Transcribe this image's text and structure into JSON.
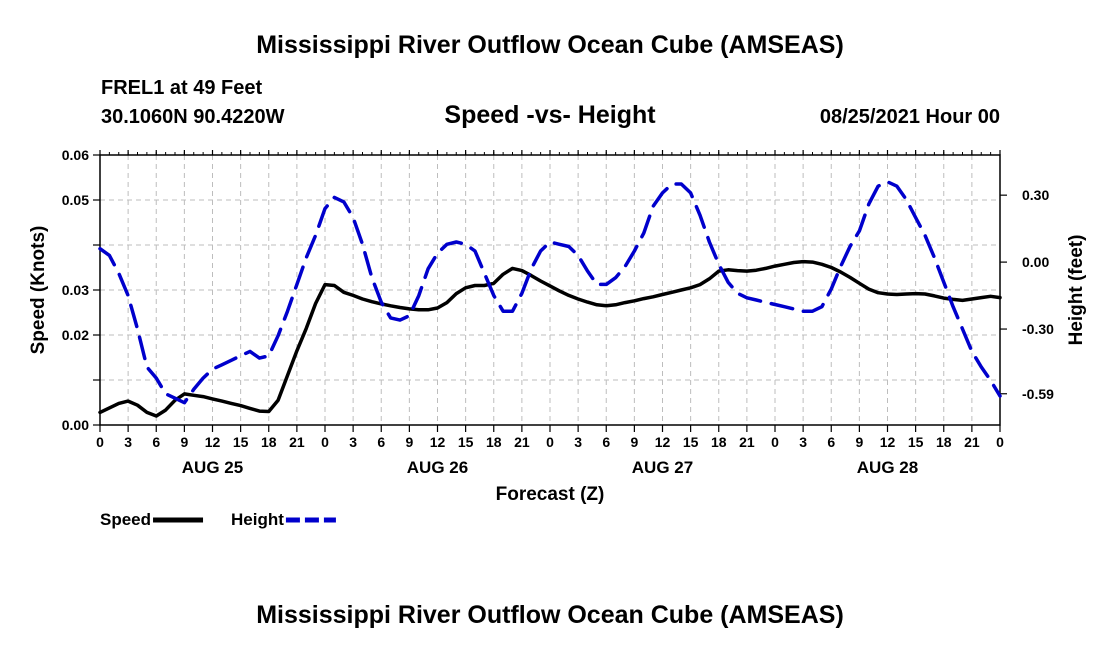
{
  "header": {
    "title": "Mississippi River Outflow Ocean Cube (AMSEAS)",
    "station": "FREL1 at 49 Feet",
    "coordinates": "30.1060N  90.4220W",
    "subtitle": "Speed -vs- Height",
    "datetime": "08/25/2021 Hour 00"
  },
  "footer": {
    "title": "Mississippi River Outflow Ocean Cube (AMSEAS)"
  },
  "chart_data": {
    "type": "line",
    "title": "Speed -vs- Height",
    "xlabel": "Forecast (Z)",
    "ylabel_left": "Speed (Knots)",
    "ylabel_right": "Height (feet)",
    "x_unit": "hours since 08/25/2021 00Z",
    "xlim": [
      0,
      96
    ],
    "x_ticks": [
      0,
      3,
      6,
      9,
      12,
      15,
      18,
      21,
      24,
      27,
      30,
      33,
      36,
      39,
      42,
      45,
      48,
      51,
      54,
      57,
      60,
      63,
      66,
      69,
      72,
      75,
      78,
      81,
      84,
      87,
      90,
      93,
      96
    ],
    "x_tick_labels": [
      "0",
      "3",
      "6",
      "9",
      "12",
      "15",
      "18",
      "21",
      "0",
      "3",
      "6",
      "9",
      "12",
      "15",
      "18",
      "21",
      "0",
      "3",
      "6",
      "9",
      "12",
      "15",
      "18",
      "21",
      "0",
      "3",
      "6",
      "9",
      "12",
      "15",
      "18",
      "21",
      "0"
    ],
    "day_labels": [
      {
        "x": 12,
        "label": "AUG 25"
      },
      {
        "x": 36,
        "label": "AUG 26"
      },
      {
        "x": 60,
        "label": "AUG 27"
      },
      {
        "x": 84,
        "label": "AUG 28"
      }
    ],
    "ylim_left": [
      0,
      0.06
    ],
    "y_ticks_left": [
      0,
      0.01,
      0.02,
      0.03,
      0.04,
      0.05,
      0.06
    ],
    "y_tick_labels_left": [
      "0.00",
      "",
      "0.02",
      "0.03",
      "",
      "0.05",
      "0.06"
    ],
    "ylim_right": [
      -0.73,
      0.48
    ],
    "y_ticks_right": [
      -0.59,
      -0.3,
      0.0,
      0.3
    ],
    "y_tick_labels_right": [
      "-0.59",
      "-0.30",
      "0.00",
      "0.30"
    ],
    "grid": true,
    "legend": [
      {
        "label": "Speed",
        "color": "#000000",
        "dash": "solid"
      },
      {
        "label": "Height",
        "color": "#0000cc",
        "dash": "dashed"
      }
    ],
    "series": [
      {
        "name": "Speed",
        "axis": "left",
        "color": "#000000",
        "points": [
          [
            0,
            0.0028
          ],
          [
            1,
            0.0038
          ],
          [
            2,
            0.0048
          ],
          [
            3,
            0.0053
          ],
          [
            4,
            0.0044
          ],
          [
            5,
            0.0028
          ],
          [
            6,
            0.002
          ],
          [
            7,
            0.0033
          ],
          [
            8,
            0.0055
          ],
          [
            9,
            0.0069
          ],
          [
            10,
            0.0066
          ],
          [
            11,
            0.0063
          ],
          [
            12,
            0.0058
          ],
          [
            13,
            0.0053
          ],
          [
            14,
            0.0048
          ],
          [
            15,
            0.0043
          ],
          [
            16,
            0.0037
          ],
          [
            17,
            0.0031
          ],
          [
            18,
            0.003
          ],
          [
            19,
            0.0055
          ],
          [
            20,
            0.011
          ],
          [
            21,
            0.0165
          ],
          [
            22,
            0.0215
          ],
          [
            23,
            0.027
          ],
          [
            24,
            0.0312
          ],
          [
            25,
            0.031
          ],
          [
            26,
            0.0295
          ],
          [
            27,
            0.0288
          ],
          [
            28,
            0.028
          ],
          [
            29,
            0.0274
          ],
          [
            30,
            0.0269
          ],
          [
            31,
            0.0265
          ],
          [
            32,
            0.0261
          ],
          [
            33,
            0.0258
          ],
          [
            34,
            0.0256
          ],
          [
            35,
            0.0256
          ],
          [
            36,
            0.026
          ],
          [
            37,
            0.0272
          ],
          [
            38,
            0.0292
          ],
          [
            39,
            0.0305
          ],
          [
            40,
            0.031
          ],
          [
            41,
            0.031
          ],
          [
            42,
            0.0315
          ],
          [
            43,
            0.0335
          ],
          [
            44,
            0.0348
          ],
          [
            45,
            0.0343
          ],
          [
            46,
            0.0332
          ],
          [
            47,
            0.032
          ],
          [
            48,
            0.0309
          ],
          [
            49,
            0.0298
          ],
          [
            50,
            0.0288
          ],
          [
            51,
            0.028
          ],
          [
            52,
            0.0273
          ],
          [
            53,
            0.0267
          ],
          [
            54,
            0.0265
          ],
          [
            55,
            0.0267
          ],
          [
            56,
            0.0272
          ],
          [
            57,
            0.0276
          ],
          [
            58,
            0.0281
          ],
          [
            59,
            0.0285
          ],
          [
            60,
            0.029
          ],
          [
            61,
            0.0295
          ],
          [
            62,
            0.03
          ],
          [
            63,
            0.0305
          ],
          [
            64,
            0.0312
          ],
          [
            65,
            0.0325
          ],
          [
            66,
            0.0342
          ],
          [
            67,
            0.0345
          ],
          [
            68,
            0.0343
          ],
          [
            69,
            0.0342
          ],
          [
            70,
            0.0344
          ],
          [
            71,
            0.0348
          ],
          [
            72,
            0.0353
          ],
          [
            73,
            0.0357
          ],
          [
            74,
            0.0361
          ],
          [
            75,
            0.0363
          ],
          [
            76,
            0.0362
          ],
          [
            77,
            0.0357
          ],
          [
            78,
            0.035
          ],
          [
            79,
            0.034
          ],
          [
            80,
            0.0328
          ],
          [
            81,
            0.0315
          ],
          [
            82,
            0.0302
          ],
          [
            83,
            0.0294
          ],
          [
            84,
            0.0291
          ],
          [
            85,
            0.029
          ],
          [
            86,
            0.0291
          ],
          [
            87,
            0.0292
          ],
          [
            88,
            0.0291
          ],
          [
            89,
            0.0287
          ],
          [
            90,
            0.0282
          ],
          [
            91,
            0.0279
          ],
          [
            92,
            0.0277
          ],
          [
            93,
            0.028
          ],
          [
            94,
            0.0283
          ],
          [
            95,
            0.0286
          ],
          [
            96,
            0.0283
          ]
        ]
      },
      {
        "name": "Height",
        "axis": "right",
        "color": "#0000cc",
        "points": [
          [
            0,
            0.06
          ],
          [
            1,
            0.03
          ],
          [
            2,
            -0.05
          ],
          [
            3,
            -0.15
          ],
          [
            4,
            -0.3
          ],
          [
            5,
            -0.47
          ],
          [
            6,
            -0.52
          ],
          [
            7,
            -0.59
          ],
          [
            8,
            -0.61
          ],
          [
            9,
            -0.63
          ],
          [
            10,
            -0.57
          ],
          [
            11,
            -0.52
          ],
          [
            12,
            -0.48
          ],
          [
            13,
            -0.46
          ],
          [
            14,
            -0.44
          ],
          [
            15,
            -0.42
          ],
          [
            16,
            -0.4
          ],
          [
            17,
            -0.43
          ],
          [
            18,
            -0.42
          ],
          [
            19,
            -0.33
          ],
          [
            20,
            -0.22
          ],
          [
            21,
            -0.1
          ],
          [
            22,
            0.02
          ],
          [
            23,
            0.12
          ],
          [
            24,
            0.24
          ],
          [
            25,
            0.29
          ],
          [
            26,
            0.27
          ],
          [
            27,
            0.2
          ],
          [
            28,
            0.08
          ],
          [
            29,
            -0.07
          ],
          [
            30,
            -0.18
          ],
          [
            31,
            -0.25
          ],
          [
            32,
            -0.26
          ],
          [
            33,
            -0.24
          ],
          [
            34,
            -0.15
          ],
          [
            35,
            -0.03
          ],
          [
            36,
            0.04
          ],
          [
            37,
            0.08
          ],
          [
            38,
            0.09
          ],
          [
            39,
            0.08
          ],
          [
            40,
            0.05
          ],
          [
            41,
            -0.05
          ],
          [
            42,
            -0.15
          ],
          [
            43,
            -0.22
          ],
          [
            44,
            -0.22
          ],
          [
            45,
            -0.14
          ],
          [
            46,
            -0.03
          ],
          [
            47,
            0.05
          ],
          [
            48,
            0.09
          ],
          [
            49,
            0.08
          ],
          [
            50,
            0.07
          ],
          [
            51,
            0.03
          ],
          [
            52,
            -0.04
          ],
          [
            53,
            -0.1
          ],
          [
            54,
            -0.1
          ],
          [
            55,
            -0.07
          ],
          [
            56,
            -0.02
          ],
          [
            57,
            0.05
          ],
          [
            58,
            0.13
          ],
          [
            59,
            0.25
          ],
          [
            60,
            0.31
          ],
          [
            61,
            0.35
          ],
          [
            62,
            0.35
          ],
          [
            63,
            0.31
          ],
          [
            64,
            0.21
          ],
          [
            65,
            0.09
          ],
          [
            66,
            -0.01
          ],
          [
            67,
            -0.09
          ],
          [
            68,
            -0.14
          ],
          [
            69,
            -0.16
          ],
          [
            70,
            -0.17
          ],
          [
            71,
            -0.18
          ],
          [
            72,
            -0.19
          ],
          [
            73,
            -0.2
          ],
          [
            74,
            -0.21
          ],
          [
            75,
            -0.22
          ],
          [
            76,
            -0.22
          ],
          [
            77,
            -0.2
          ],
          [
            78,
            -0.12
          ],
          [
            79,
            -0.02
          ],
          [
            80,
            0.07
          ],
          [
            81,
            0.14
          ],
          [
            82,
            0.26
          ],
          [
            83,
            0.34
          ],
          [
            84,
            0.36
          ],
          [
            85,
            0.34
          ],
          [
            86,
            0.28
          ],
          [
            87,
            0.2
          ],
          [
            88,
            0.12
          ],
          [
            89,
            0.02
          ],
          [
            90,
            -0.09
          ],
          [
            91,
            -0.2
          ],
          [
            92,
            -0.3
          ],
          [
            93,
            -0.4
          ],
          [
            94,
            -0.47
          ],
          [
            95,
            -0.53
          ],
          [
            96,
            -0.6
          ]
        ]
      }
    ]
  }
}
